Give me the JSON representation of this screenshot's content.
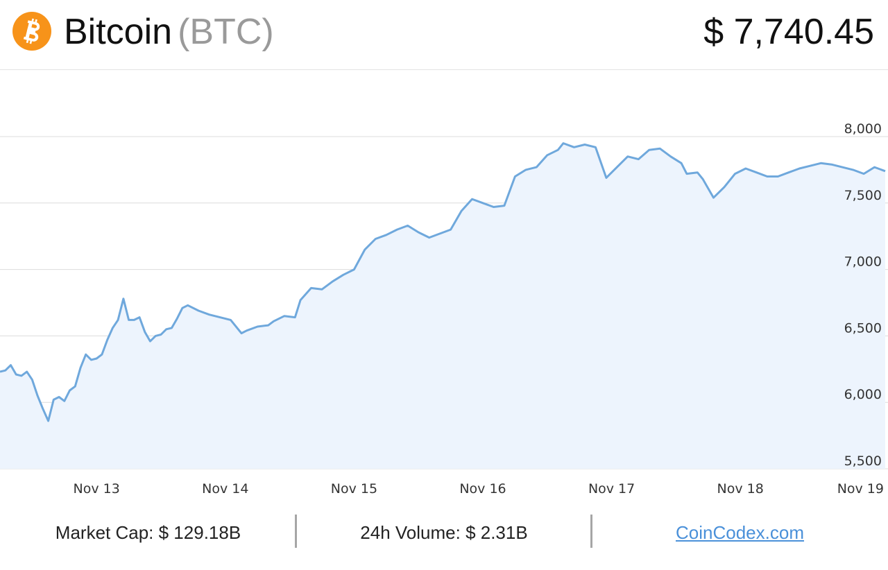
{
  "header": {
    "coin_name": "Bitcoin",
    "coin_symbol": "(BTC)",
    "price": "$ 7,740.45",
    "icon": "bitcoin-icon",
    "icon_color": "#f7931a"
  },
  "chart_data": {
    "type": "area",
    "title": "",
    "xlabel": "",
    "ylabel": "",
    "ylim": [
      5500,
      8000
    ],
    "yticks": [
      8000,
      7500,
      7000,
      6500,
      6000,
      5500
    ],
    "ytick_labels": [
      "8,000",
      "7,500",
      "7,000",
      "6,500",
      "6,000",
      "5,500"
    ],
    "xlim": [
      "2018-11-12T06:00",
      "2018-11-19T03:00"
    ],
    "xticks": [
      "2018-11-13",
      "2018-11-14",
      "2018-11-15",
      "2018-11-16",
      "2018-11-17",
      "2018-11-18",
      "2018-11-19"
    ],
    "xtick_labels": [
      "Nov 13",
      "Nov 14",
      "Nov 15",
      "Nov 16",
      "Nov 17",
      "Nov 18",
      "Nov 19"
    ],
    "grid": true,
    "line_color": "#6fa8dc",
    "fill_color": "#edf4fd",
    "series": [
      {
        "x": [
          "2018-11-12T06:00",
          "2018-11-12T07:00",
          "2018-11-12T08:00",
          "2018-11-12T09:00",
          "2018-11-12T10:00",
          "2018-11-12T11:00",
          "2018-11-12T12:00",
          "2018-11-12T13:00",
          "2018-11-12T14:00",
          "2018-11-12T15:00",
          "2018-11-12T16:00",
          "2018-11-12T17:00",
          "2018-11-12T18:00",
          "2018-11-12T19:00",
          "2018-11-12T20:00",
          "2018-11-12T21:00",
          "2018-11-12T22:00",
          "2018-11-12T23:00",
          "2018-11-13T00:00",
          "2018-11-13T01:00",
          "2018-11-13T02:00",
          "2018-11-13T03:00",
          "2018-11-13T04:00",
          "2018-11-13T05:00",
          "2018-11-13T06:00",
          "2018-11-13T07:00",
          "2018-11-13T08:00",
          "2018-11-13T09:00",
          "2018-11-13T10:00",
          "2018-11-13T11:00",
          "2018-11-13T12:00",
          "2018-11-13T13:00",
          "2018-11-13T14:00",
          "2018-11-13T15:00",
          "2018-11-13T16:00",
          "2018-11-13T17:00",
          "2018-11-13T19:00",
          "2018-11-13T21:00",
          "2018-11-13T23:00",
          "2018-11-14T01:00",
          "2018-11-14T03:00",
          "2018-11-14T04:00",
          "2018-11-14T06:00",
          "2018-11-14T08:00",
          "2018-11-14T09:00",
          "2018-11-14T11:00",
          "2018-11-14T13:00",
          "2018-11-14T14:00",
          "2018-11-14T16:00",
          "2018-11-14T18:00",
          "2018-11-14T20:00",
          "2018-11-14T22:00",
          "2018-11-15T00:00",
          "2018-11-15T02:00",
          "2018-11-15T04:00",
          "2018-11-15T06:00",
          "2018-11-15T08:00",
          "2018-11-15T10:00",
          "2018-11-15T12:00",
          "2018-11-15T14:00",
          "2018-11-15T16:00",
          "2018-11-15T18:00",
          "2018-11-15T20:00",
          "2018-11-15T22:00",
          "2018-11-16T00:00",
          "2018-11-16T02:00",
          "2018-11-16T04:00",
          "2018-11-16T06:00",
          "2018-11-16T08:00",
          "2018-11-16T10:00",
          "2018-11-16T12:00",
          "2018-11-16T14:00",
          "2018-11-16T15:00",
          "2018-11-16T17:00",
          "2018-11-16T19:00",
          "2018-11-16T21:00",
          "2018-11-16T23:00",
          "2018-11-17T01:00",
          "2018-11-17T03:00",
          "2018-11-17T05:00",
          "2018-11-17T07:00",
          "2018-11-17T09:00",
          "2018-11-17T11:00",
          "2018-11-17T13:00",
          "2018-11-17T14:00",
          "2018-11-17T16:00",
          "2018-11-17T17:00",
          "2018-11-17T19:00",
          "2018-11-17T21:00",
          "2018-11-17T23:00",
          "2018-11-18T01:00",
          "2018-11-18T03:00",
          "2018-11-18T05:00",
          "2018-11-18T07:00",
          "2018-11-18T09:00",
          "2018-11-18T11:00",
          "2018-11-18T13:00",
          "2018-11-18T15:00",
          "2018-11-18T17:00",
          "2018-11-18T19:00",
          "2018-11-18T21:00",
          "2018-11-18T23:00",
          "2018-11-19T01:00",
          "2018-11-19T03:00"
        ],
        "values": [
          6230,
          6240,
          6280,
          6210,
          6200,
          6230,
          6170,
          6050,
          5950,
          5860,
          6020,
          6040,
          6010,
          6090,
          6120,
          6260,
          6360,
          6320,
          6330,
          6360,
          6470,
          6560,
          6620,
          6780,
          6620,
          6620,
          6640,
          6530,
          6460,
          6500,
          6510,
          6550,
          6560,
          6630,
          6710,
          6730,
          6690,
          6660,
          6640,
          6620,
          6520,
          6540,
          6570,
          6580,
          6610,
          6650,
          6640,
          6770,
          6860,
          6850,
          6910,
          6960,
          7000,
          7150,
          7230,
          7260,
          7300,
          7330,
          7280,
          7240,
          7270,
          7300,
          7440,
          7530,
          7500,
          7470,
          7480,
          7700,
          7750,
          7770,
          7860,
          7900,
          7950,
          7920,
          7940,
          7920,
          7690,
          7770,
          7850,
          7830,
          7900,
          7910,
          7850,
          7800,
          7720,
          7730,
          7680,
          7540,
          7620,
          7720,
          7760,
          7730,
          7700,
          7700,
          7730,
          7760,
          7780,
          7800,
          7790,
          7770,
          7750,
          7720,
          7770,
          7740
        ]
      }
    ]
  },
  "footer": {
    "market_cap": "Market Cap: $ 129.18B",
    "volume": "24h Volume: $ 2.31B",
    "source_link": "CoinCodex.com"
  }
}
